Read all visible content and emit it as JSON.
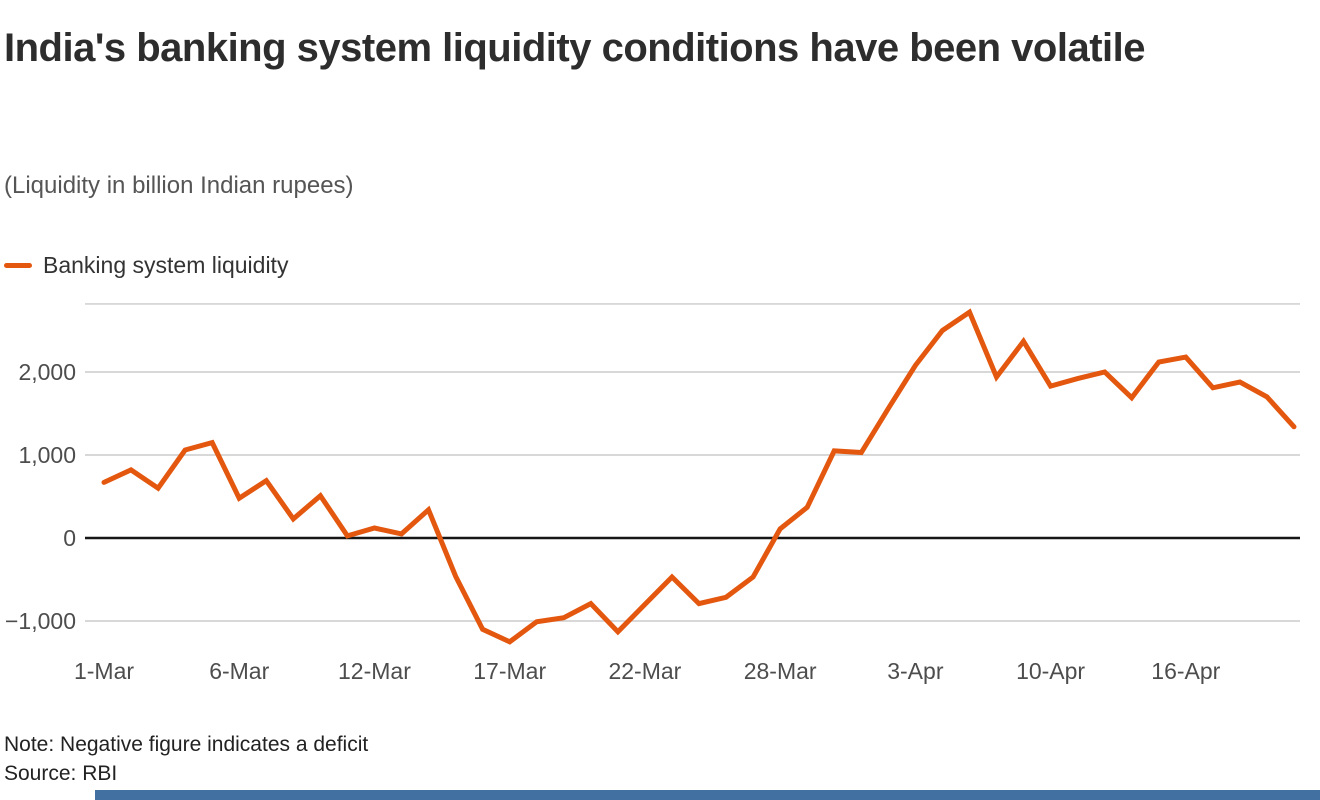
{
  "header": {
    "title": "India's banking system liquidity conditions have been volatile",
    "subtitle": "(Liquidity in billion Indian rupees)"
  },
  "legend": {
    "series_label": "Banking system liquidity"
  },
  "footer": {
    "note": "Note: Negative figure indicates a deficit",
    "source": "Source: RBI"
  },
  "colors": {
    "line": "#E4570F",
    "grid": "#CBCBCB",
    "zero_line": "#161616",
    "axis_text": "#4D4D4D",
    "bottom_bar": "#4170A1"
  },
  "chart_data": {
    "type": "line",
    "title": "India's banking system liquidity conditions have been volatile",
    "subtitle": "(Liquidity in billion Indian rupees)",
    "unit": "billion Indian rupees",
    "legend_position": "top-left",
    "grid": "horizontal gridlines at -1000, 0 (bold zero line), 1000, 2000",
    "xlabel": "",
    "ylabel": "",
    "ylim": [
      -1350,
      2820
    ],
    "y_ticks": [
      {
        "value": -1000,
        "label": "−1,000"
      },
      {
        "value": 0,
        "label": "0"
      },
      {
        "value": 1000,
        "label": "1,000"
      },
      {
        "value": 2000,
        "label": "2,000"
      }
    ],
    "x_tick_labels": [
      {
        "index": 0,
        "label": "1-Mar"
      },
      {
        "index": 5,
        "label": "6-Mar"
      },
      {
        "index": 10,
        "label": "12-Mar"
      },
      {
        "index": 15,
        "label": "17-Mar"
      },
      {
        "index": 20,
        "label": "22-Mar"
      },
      {
        "index": 25,
        "label": "28-Mar"
      },
      {
        "index": 30,
        "label": "3-Apr"
      },
      {
        "index": 35,
        "label": "10-Apr"
      },
      {
        "index": 40,
        "label": "16-Apr"
      }
    ],
    "series": [
      {
        "name": "Banking system liquidity",
        "values": [
          670,
          820,
          600,
          1060,
          1150,
          480,
          690,
          230,
          510,
          25,
          120,
          50,
          340,
          -460,
          -1100,
          -1250,
          -1010,
          -960,
          -790,
          -1130,
          -800,
          -470,
          -790,
          -715,
          -470,
          110,
          370,
          1050,
          1030,
          1560,
          2080,
          2500,
          2720,
          1940,
          2370,
          1830,
          1920,
          2000,
          1690,
          2120,
          2180,
          1810,
          1880,
          1700,
          1340
        ]
      }
    ]
  }
}
